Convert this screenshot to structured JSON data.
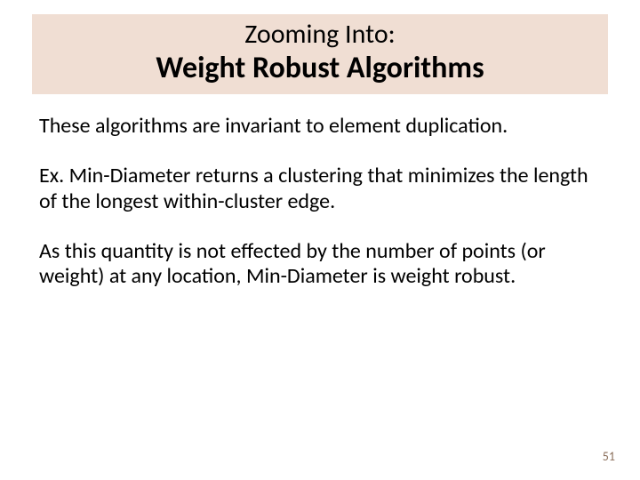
{
  "slide": {
    "title_line1": "Zooming Into:",
    "title_line2": "Weight Robust Algorithms",
    "para1": "These algorithms are invariant to element duplication.",
    "para2": "Ex. Min-Diameter returns a clustering that minimizes the length of the longest within-cluster edge.",
    "para3": "As this quantity is not effected by the number of points (or weight) at any location, Min-Diameter is weight robust.",
    "page_number": "51"
  },
  "style": {
    "title_background": "#f0ded3",
    "title_line1_fontsize": 30,
    "title_line1_weight": 400,
    "title_line2_fontsize": 34,
    "title_line2_weight": 700,
    "body_fontsize": 24,
    "body_color": "#000000",
    "page_num_color": "#8a6e5a",
    "page_num_fontsize": 14,
    "slide_width": 720,
    "slide_height": 540,
    "font_family": "Calibri"
  }
}
